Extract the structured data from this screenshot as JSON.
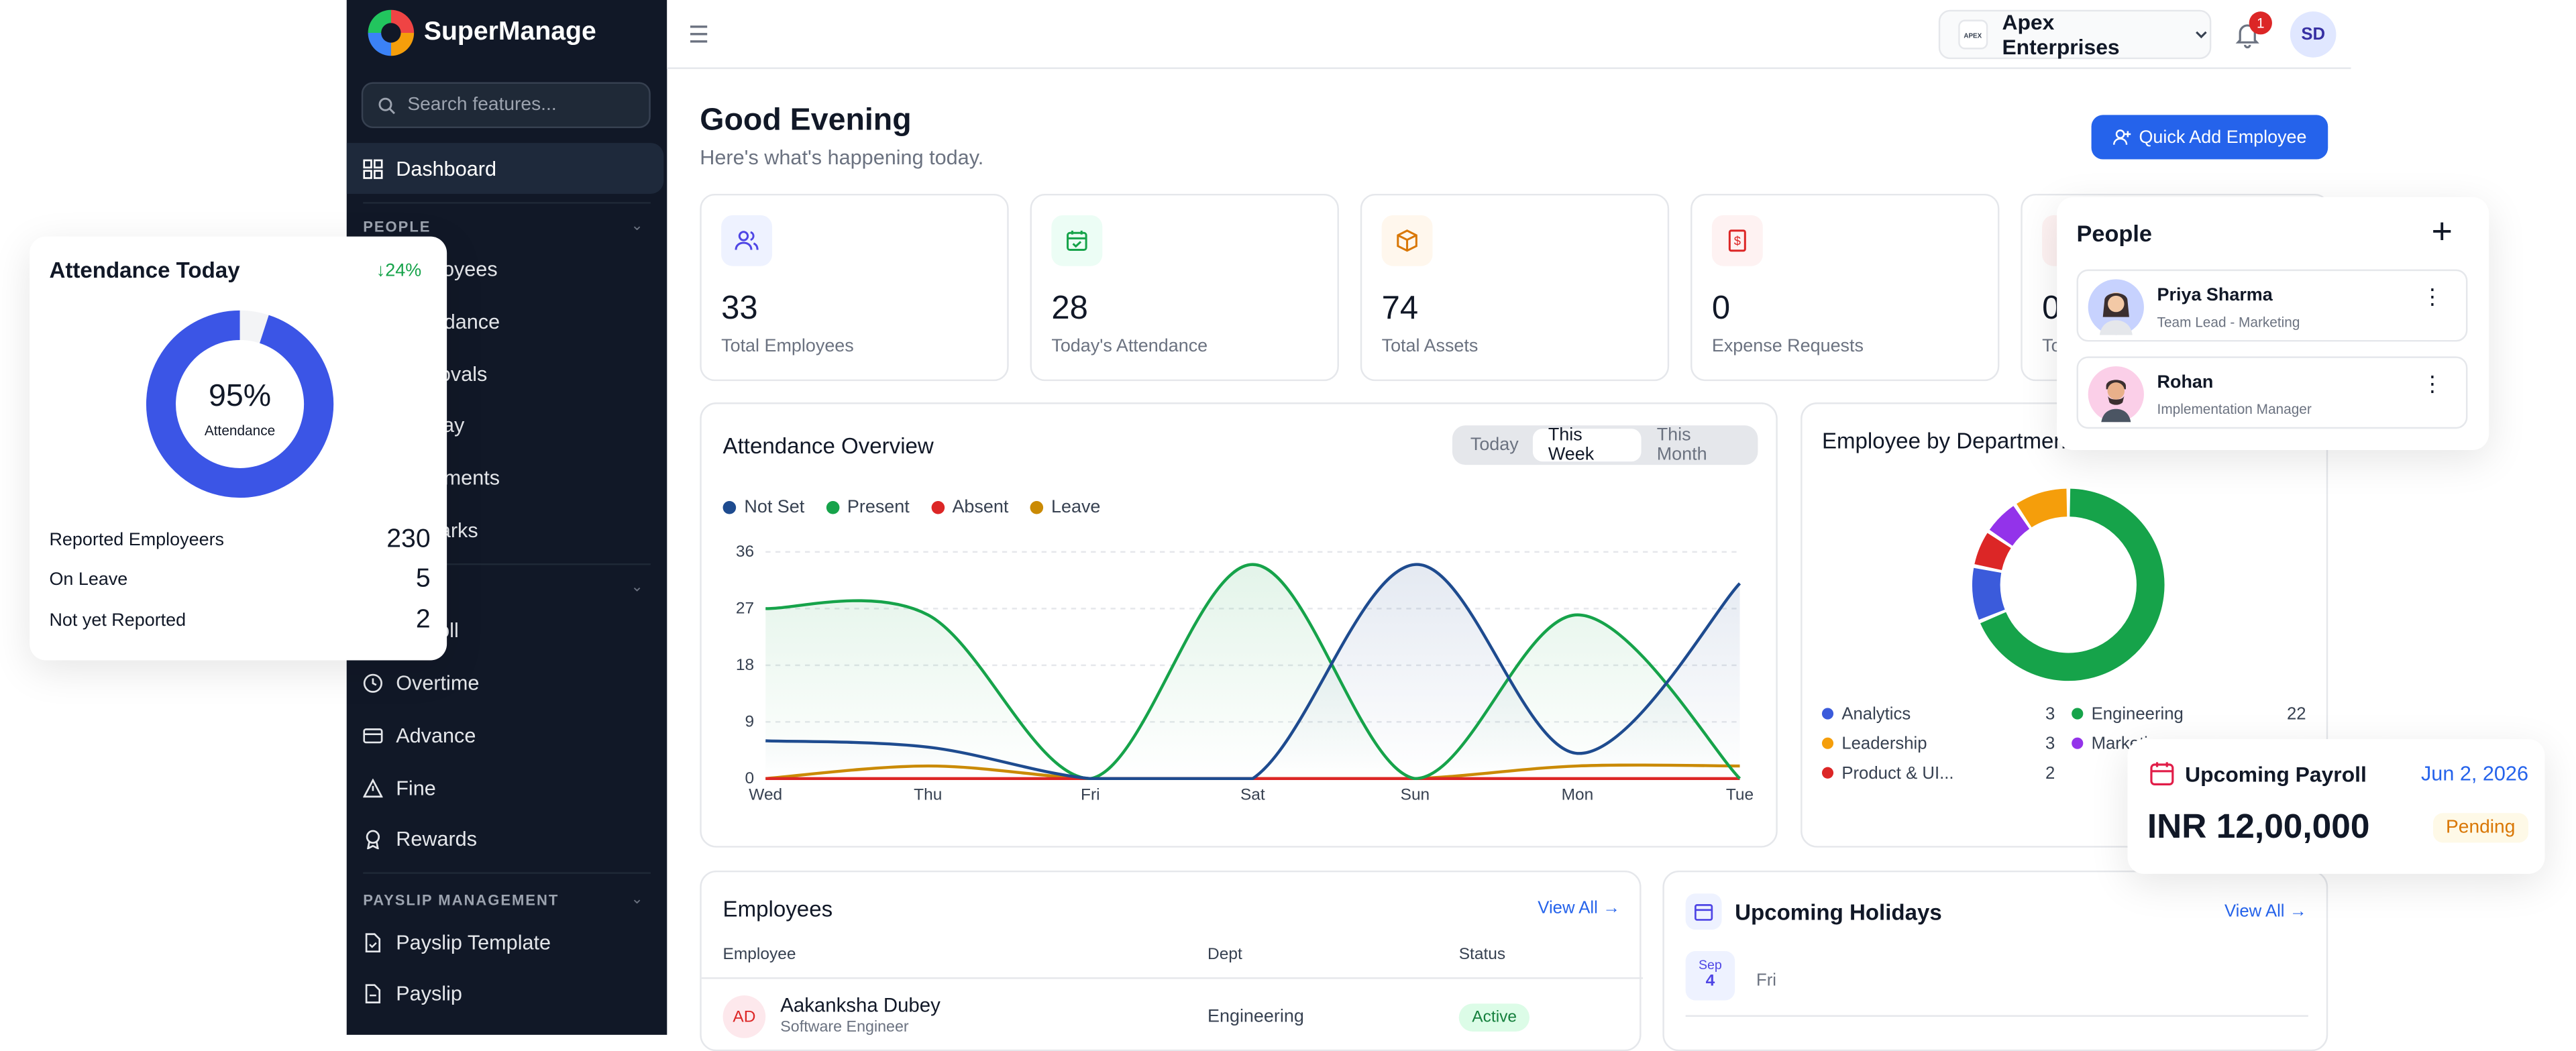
{
  "sidebar": {
    "brand": "SuperManage",
    "search_placeholder": "Search features...",
    "active_item": "Dashboard",
    "sections": [
      "PEOPLE",
      "PAYSLIP MANAGEMENT"
    ],
    "people_items": [
      "Employees",
      "Attendance",
      "Approvals",
      "Holiday",
      "Documents",
      "Remarks"
    ],
    "payroll_items": [
      "Payroll",
      "Overtime",
      "Advance",
      "Fine",
      "Rewards"
    ],
    "payslip_items": [
      "Payslip Template",
      "Payslip"
    ]
  },
  "header": {
    "org_logo_text": "APEX",
    "org_name": "Apex Enterprises",
    "notification_count": "1",
    "user_initials": "SD"
  },
  "main": {
    "greeting": "Good Evening",
    "subtitle": "Here's what's happening today.",
    "quick_add": "Quick Add Employee",
    "stats": [
      {
        "value": "33",
        "label": "Total Employees"
      },
      {
        "value": "28",
        "label": "Today's Attendance"
      },
      {
        "value": "74",
        "label": "Total Assets"
      },
      {
        "value": "0",
        "label": "Expense Requests"
      },
      {
        "value": "0",
        "label": "To"
      }
    ]
  },
  "attendance_overview": {
    "title": "Attendance Overview",
    "ranges": [
      "Today",
      "This Week",
      "This Month"
    ],
    "selected_range": "This Week"
  },
  "chart_data": {
    "type": "line",
    "title": "Attendance Overview",
    "x": [
      "Wed",
      "Thu",
      "Fri",
      "Sat",
      "Sun",
      "Mon",
      "Tue"
    ],
    "ylim": [
      0,
      36
    ],
    "yticks": [
      0,
      9,
      18,
      27,
      36
    ],
    "grid": true,
    "legend": "top-left",
    "series": [
      {
        "name": "Not Set",
        "color": "#1e4b8f",
        "values": [
          6,
          5,
          0,
          0,
          34,
          4,
          31
        ]
      },
      {
        "name": "Present",
        "color": "#16a34a",
        "values": [
          27,
          26,
          0,
          34,
          0,
          26,
          0
        ]
      },
      {
        "name": "Absent",
        "color": "#dc2626",
        "values": [
          0,
          0,
          0,
          0,
          0,
          0,
          0
        ]
      },
      {
        "name": "Leave",
        "color": "#ca8a04",
        "values": [
          0,
          2,
          0,
          0,
          0,
          2,
          2
        ]
      }
    ]
  },
  "employee_by_department": {
    "title": "Employee by Department",
    "left_col": [
      {
        "name": "Analytics",
        "count": "3",
        "color": "#3b5bdb"
      },
      {
        "name": "Leadership",
        "count": "3",
        "color": "#f59e0b"
      },
      {
        "name": "Product & UI...",
        "count": "2",
        "color": "#dc2626"
      }
    ],
    "right_col": [
      {
        "name": "Engineering",
        "count": "22",
        "color": "#16a34a"
      },
      {
        "name": "Marketing",
        "count": "",
        "color": "#9333ea"
      }
    ],
    "donut": [
      {
        "name": "Engineering",
        "value": 22,
        "color": "#16a34a"
      },
      {
        "name": "Analytics",
        "value": 3,
        "color": "#3b5bdb"
      },
      {
        "name": "Product & UI",
        "value": 2,
        "color": "#dc2626"
      },
      {
        "name": "Marketing",
        "value": 2,
        "color": "#9333ea"
      },
      {
        "name": "Leadership",
        "value": 3,
        "color": "#f59e0b"
      }
    ]
  },
  "employees": {
    "title": "Employees",
    "view_all": "View All",
    "columns": [
      "Employee",
      "Dept",
      "Status"
    ],
    "rows": [
      {
        "initials": "AD",
        "name": "Aakanksha Dubey",
        "role": "Software Engineer",
        "dept": "Engineering",
        "status": "Active"
      }
    ]
  },
  "holidays": {
    "title": "Upcoming Holidays",
    "view_all": "View All",
    "items": [
      {
        "month": "Sep",
        "day": "4",
        "weekday": "Fri"
      }
    ]
  },
  "attendance_today": {
    "title": "Attendance Today",
    "change": "24%",
    "percent": 95,
    "percent_label": "95%",
    "center_label": "Attendance",
    "rows": [
      {
        "label": "Reported Employeers",
        "value": "230"
      },
      {
        "label": "On Leave",
        "value": "5"
      },
      {
        "label": "Not yet Reported",
        "value": "2"
      }
    ]
  },
  "people_card": {
    "title": "People",
    "people": [
      {
        "name": "Priya Sharma",
        "role": "Team Lead - Marketing"
      },
      {
        "name": "Rohan",
        "role": "Implementation Manager"
      }
    ]
  },
  "payroll_card": {
    "title": "Upcoming Payroll",
    "date": "Jun 2, 2026",
    "amount": "INR 12,00,000",
    "status": "Pending"
  }
}
